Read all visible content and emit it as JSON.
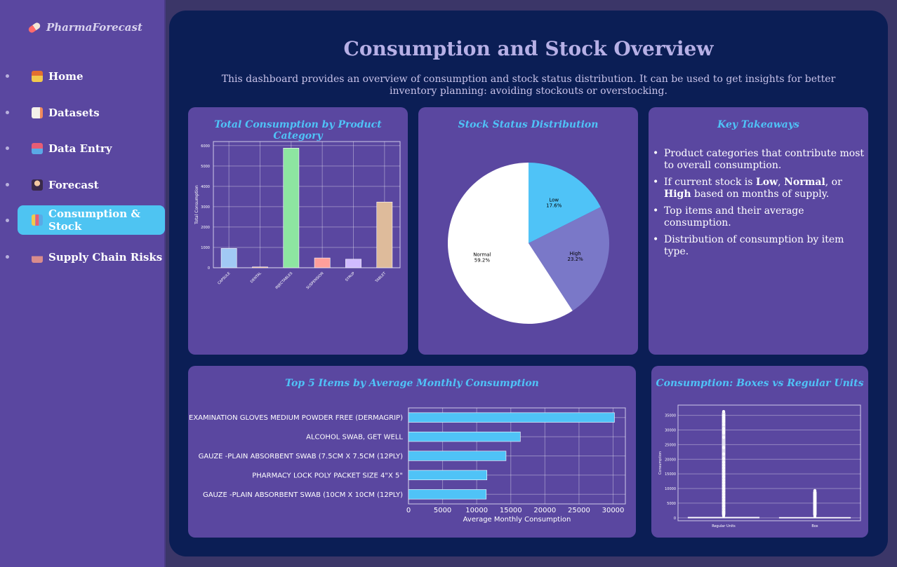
{
  "brand": "PharmaForecast",
  "nav": [
    {
      "label": "Home",
      "icon": "house-icon"
    },
    {
      "label": "Datasets",
      "icon": "document-icon"
    },
    {
      "label": "Data Entry",
      "icon": "inbox-icon"
    },
    {
      "label": "Forecast",
      "icon": "fortune-teller-icon"
    },
    {
      "label": "Consumption & Stock",
      "icon": "bar-chart-icon"
    },
    {
      "label": "Supply Chain Risks",
      "icon": "factory-icon"
    }
  ],
  "active_nav": "Consumption & Stock",
  "page": {
    "title": "Consumption and Stock Overview",
    "description": "This dashboard provides an overview of consumption and stock status distribution. It can be used to get insights for better inventory planning: avoiding stockouts or overstocking."
  },
  "cards": {
    "category": {
      "title": "Total Consumption by Product Category"
    },
    "stock": {
      "title": "Stock Status Distribution"
    },
    "takeaways": {
      "title": "Key Takeaways",
      "items": [
        "Product categories that contribute most to overall consumption.",
        {
          "pre": "If current stock is ",
          "b1": "Low",
          "mid1": ", ",
          "b2": "Normal",
          "mid2": ", or ",
          "b3": "High",
          "post": " based on months of supply."
        },
        "Top items and their average consumption.",
        "Distribution of consumption by item type."
      ]
    },
    "top5": {
      "title": "Top 5 Items by Average Monthly Consumption"
    },
    "boxes": {
      "title": "Consumption: Boxes vs Regular Units"
    }
  },
  "chart_data": [
    {
      "type": "bar",
      "title": "Total Consumption by Product Category",
      "categories": [
        "CAPSULE",
        "DENTAL",
        "INJECTABLES",
        "SUSPENSION",
        "SYRUP",
        "TABLET"
      ],
      "values": [
        950,
        40,
        5880,
        480,
        420,
        3230
      ],
      "colors": [
        "#a1c9f4",
        "#ffb482",
        "#8de5a1",
        "#ff9f9b",
        "#d0bbff",
        "#debb9b"
      ],
      "ylabel": "Total Consumption",
      "yticks": [
        0,
        1000,
        2000,
        3000,
        4000,
        5000,
        6000
      ],
      "ylim": [
        0,
        6200
      ],
      "grid": true
    },
    {
      "type": "pie",
      "title": "Stock Status Distribution",
      "slices": [
        {
          "label": "Low",
          "value": 17.6,
          "pct": "17.6%",
          "color": "#4fc3f7"
        },
        {
          "label": "High",
          "value": 23.2,
          "pct": "23.2%",
          "color": "#7a78c8"
        },
        {
          "label": "Normal",
          "value": 59.2,
          "pct": "59.2%",
          "color": "#ffffff"
        }
      ]
    },
    {
      "type": "bar",
      "orientation": "horizontal",
      "title": "Top 5 Items by Average Monthly Consumption",
      "categories": [
        "EXAMINATION GLOVES MEDIUM POWDER FREE (DERMAGRIP)",
        "ALCOHOL SWAB, GET WELL",
        "GAUZE -PLAIN ABSORBENT SWAB (7.5CM X 7.5CM (12PLY)",
        "PHARMACY LOCK POLY PACKET SIZE 4\"X 5\"",
        "GAUZE -PLAIN ABSORBENT SWAB (10CM X 10CM (12PLY)"
      ],
      "values": [
        30200,
        16400,
        14300,
        11500,
        11400
      ],
      "xlabel": "Average Monthly Consumption",
      "xticks": [
        0,
        5000,
        10000,
        15000,
        20000,
        25000,
        30000
      ],
      "xlim": [
        0,
        31800
      ],
      "color": "#4fc3f7",
      "grid": true
    },
    {
      "type": "scatter",
      "title": "Consumption: Boxes vs Regular Units",
      "categories": [
        "Regular Units",
        "Box"
      ],
      "ylabel": "Consumption",
      "yticks": [
        0,
        5000,
        10000,
        15000,
        20000,
        25000,
        30000,
        35000
      ],
      "ylim": [
        -1000,
        38500
      ],
      "groups": [
        {
          "name": "Regular Units",
          "median": 50,
          "q3": 200,
          "whisker_high": 500,
          "points": [
            36300,
            35000,
            34200,
            33500,
            32800,
            31800,
            30500,
            29500,
            29000,
            27500,
            24000,
            21800,
            20200,
            19000,
            18000,
            17000,
            16000,
            15000,
            14000,
            13000,
            12000,
            11000,
            10000,
            9000,
            8000,
            7000,
            6000,
            5000,
            4000,
            3000,
            2000,
            1500,
            1000,
            700
          ]
        },
        {
          "name": "Box",
          "median": 20,
          "q3": 150,
          "whisker_high": 350,
          "points": [
            9300,
            8800,
            8200,
            7800,
            7300,
            7000,
            6500,
            6000,
            5500,
            5000,
            4500,
            4000,
            3500,
            3000,
            2500,
            2000,
            1500,
            1000,
            600
          ]
        }
      ]
    }
  ]
}
